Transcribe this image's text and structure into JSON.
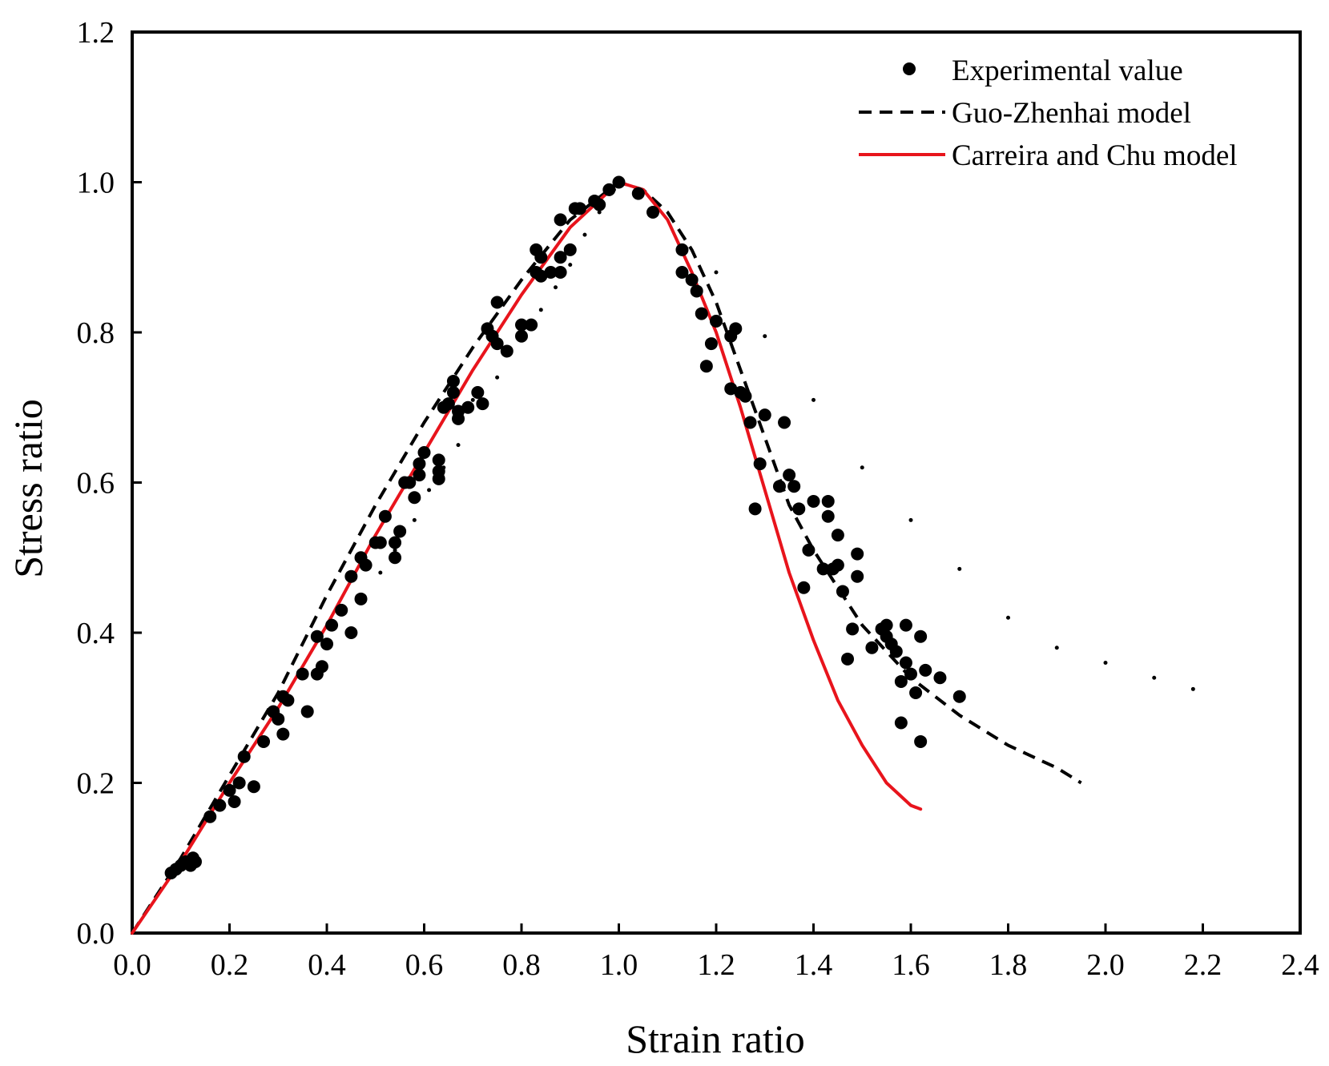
{
  "chart_data": {
    "type": "scatter",
    "title": "",
    "xlabel": "Strain ratio",
    "ylabel": "Stress ratio",
    "xlim": [
      0,
      2.4
    ],
    "ylim": [
      0,
      1.2
    ],
    "xticks": [
      "0.0",
      "0.2",
      "0.4",
      "0.6",
      "0.8",
      "1.0",
      "1.2",
      "1.4",
      "1.6",
      "1.8",
      "2.0",
      "2.2",
      "2.4"
    ],
    "yticks": [
      "0.0",
      "0.2",
      "0.4",
      "0.6",
      "0.8",
      "1.0",
      "1.2"
    ],
    "legend_position": "top-right",
    "series": [
      {
        "name": "Experimental value",
        "kind": "scatter",
        "color": "#000000",
        "points": [
          [
            0.08,
            0.08
          ],
          [
            0.09,
            0.085
          ],
          [
            0.1,
            0.09
          ],
          [
            0.11,
            0.095
          ],
          [
            0.12,
            0.09
          ],
          [
            0.125,
            0.1
          ],
          [
            0.13,
            0.095
          ],
          [
            0.16,
            0.155
          ],
          [
            0.18,
            0.17
          ],
          [
            0.2,
            0.19
          ],
          [
            0.21,
            0.175
          ],
          [
            0.22,
            0.2
          ],
          [
            0.23,
            0.235
          ],
          [
            0.25,
            0.195
          ],
          [
            0.27,
            0.255
          ],
          [
            0.29,
            0.295
          ],
          [
            0.3,
            0.285
          ],
          [
            0.31,
            0.315
          ],
          [
            0.31,
            0.265
          ],
          [
            0.32,
            0.31
          ],
          [
            0.35,
            0.345
          ],
          [
            0.36,
            0.295
          ],
          [
            0.38,
            0.395
          ],
          [
            0.38,
            0.345
          ],
          [
            0.39,
            0.355
          ],
          [
            0.4,
            0.385
          ],
          [
            0.41,
            0.41
          ],
          [
            0.43,
            0.43
          ],
          [
            0.45,
            0.475
          ],
          [
            0.45,
            0.4
          ],
          [
            0.47,
            0.5
          ],
          [
            0.47,
            0.445
          ],
          [
            0.48,
            0.49
          ],
          [
            0.5,
            0.52
          ],
          [
            0.51,
            0.52
          ],
          [
            0.52,
            0.555
          ],
          [
            0.54,
            0.52
          ],
          [
            0.54,
            0.5
          ],
          [
            0.55,
            0.535
          ],
          [
            0.56,
            0.6
          ],
          [
            0.57,
            0.6
          ],
          [
            0.58,
            0.58
          ],
          [
            0.59,
            0.625
          ],
          [
            0.59,
            0.61
          ],
          [
            0.6,
            0.64
          ],
          [
            0.63,
            0.63
          ],
          [
            0.63,
            0.615
          ],
          [
            0.63,
            0.605
          ],
          [
            0.64,
            0.7
          ],
          [
            0.65,
            0.705
          ],
          [
            0.66,
            0.735
          ],
          [
            0.66,
            0.72
          ],
          [
            0.67,
            0.695
          ],
          [
            0.67,
            0.685
          ],
          [
            0.69,
            0.7
          ],
          [
            0.71,
            0.72
          ],
          [
            0.72,
            0.705
          ],
          [
            0.73,
            0.805
          ],
          [
            0.74,
            0.795
          ],
          [
            0.75,
            0.785
          ],
          [
            0.75,
            0.84
          ],
          [
            0.77,
            0.775
          ],
          [
            0.8,
            0.81
          ],
          [
            0.8,
            0.795
          ],
          [
            0.82,
            0.81
          ],
          [
            0.83,
            0.88
          ],
          [
            0.83,
            0.91
          ],
          [
            0.84,
            0.875
          ],
          [
            0.84,
            0.9
          ],
          [
            0.86,
            0.88
          ],
          [
            0.88,
            0.9
          ],
          [
            0.88,
            0.88
          ],
          [
            0.88,
            0.95
          ],
          [
            0.9,
            0.91
          ],
          [
            0.91,
            0.965
          ],
          [
            0.92,
            0.965
          ],
          [
            0.95,
            0.975
          ],
          [
            0.96,
            0.97
          ],
          [
            0.98,
            0.99
          ],
          [
            1.0,
            1.0
          ],
          [
            1.04,
            0.985
          ],
          [
            1.07,
            0.96
          ],
          [
            1.13,
            0.91
          ],
          [
            1.13,
            0.88
          ],
          [
            1.15,
            0.87
          ],
          [
            1.16,
            0.855
          ],
          [
            1.17,
            0.825
          ],
          [
            1.18,
            0.755
          ],
          [
            1.19,
            0.785
          ],
          [
            1.2,
            0.815
          ],
          [
            1.23,
            0.725
          ],
          [
            1.23,
            0.795
          ],
          [
            1.24,
            0.805
          ],
          [
            1.25,
            0.72
          ],
          [
            1.26,
            0.715
          ],
          [
            1.27,
            0.68
          ],
          [
            1.28,
            0.565
          ],
          [
            1.29,
            0.625
          ],
          [
            1.3,
            0.69
          ],
          [
            1.33,
            0.595
          ],
          [
            1.34,
            0.68
          ],
          [
            1.35,
            0.61
          ],
          [
            1.36,
            0.595
          ],
          [
            1.37,
            0.565
          ],
          [
            1.38,
            0.46
          ],
          [
            1.39,
            0.51
          ],
          [
            1.4,
            0.575
          ],
          [
            1.42,
            0.485
          ],
          [
            1.43,
            0.575
          ],
          [
            1.43,
            0.555
          ],
          [
            1.44,
            0.485
          ],
          [
            1.45,
            0.53
          ],
          [
            1.45,
            0.49
          ],
          [
            1.46,
            0.455
          ],
          [
            1.47,
            0.365
          ],
          [
            1.48,
            0.405
          ],
          [
            1.49,
            0.505
          ],
          [
            1.49,
            0.475
          ],
          [
            1.52,
            0.38
          ],
          [
            1.54,
            0.405
          ],
          [
            1.55,
            0.41
          ],
          [
            1.55,
            0.395
          ],
          [
            1.56,
            0.385
          ],
          [
            1.57,
            0.375
          ],
          [
            1.58,
            0.28
          ],
          [
            1.58,
            0.335
          ],
          [
            1.59,
            0.36
          ],
          [
            1.59,
            0.41
          ],
          [
            1.6,
            0.345
          ],
          [
            1.61,
            0.32
          ],
          [
            1.62,
            0.395
          ],
          [
            1.62,
            0.255
          ],
          [
            1.63,
            0.35
          ],
          [
            1.66,
            0.34
          ],
          [
            1.7,
            0.315
          ]
        ]
      },
      {
        "name": "Guo-Zhenhai model",
        "kind": "dashed-line",
        "color": "#000000",
        "x": [
          0,
          0.1,
          0.2,
          0.3,
          0.4,
          0.5,
          0.6,
          0.7,
          0.8,
          0.9,
          1.0,
          1.05,
          1.1,
          1.15,
          1.2,
          1.25,
          1.3,
          1.35,
          1.4,
          1.5,
          1.6,
          1.7,
          1.8,
          1.9,
          1.95
        ],
        "y": [
          0,
          0.1,
          0.21,
          0.32,
          0.45,
          0.57,
          0.68,
          0.78,
          0.87,
          0.95,
          1.0,
          0.99,
          0.96,
          0.91,
          0.84,
          0.75,
          0.66,
          0.57,
          0.51,
          0.41,
          0.34,
          0.29,
          0.25,
          0.22,
          0.2
        ]
      },
      {
        "name": "Carreira and Chu model",
        "kind": "solid-line",
        "color": "#e8141c",
        "x": [
          0,
          0.1,
          0.2,
          0.3,
          0.4,
          0.5,
          0.6,
          0.7,
          0.8,
          0.9,
          1.0,
          1.05,
          1.1,
          1.15,
          1.2,
          1.25,
          1.3,
          1.35,
          1.4,
          1.45,
          1.5,
          1.55,
          1.6,
          1.62
        ],
        "y": [
          0,
          0.095,
          0.2,
          0.3,
          0.41,
          0.53,
          0.64,
          0.75,
          0.85,
          0.94,
          1.0,
          0.99,
          0.95,
          0.88,
          0.8,
          0.7,
          0.59,
          0.48,
          0.39,
          0.31,
          0.25,
          0.2,
          0.17,
          0.165
        ]
      }
    ],
    "sparse_dotted_trail": {
      "color": "#000000",
      "points": [
        [
          0.51,
          0.48
        ],
        [
          0.54,
          0.51
        ],
        [
          0.58,
          0.55
        ],
        [
          0.61,
          0.59
        ],
        [
          0.64,
          0.62
        ],
        [
          0.67,
          0.65
        ],
        [
          0.7,
          0.71
        ],
        [
          0.75,
          0.74
        ],
        [
          0.8,
          0.79
        ],
        [
          0.84,
          0.83
        ],
        [
          0.87,
          0.86
        ],
        [
          0.9,
          0.89
        ],
        [
          0.93,
          0.93
        ],
        [
          0.96,
          0.96
        ],
        [
          0.99,
          0.99
        ],
        [
          1.08,
          0.97
        ],
        [
          1.2,
          0.88
        ],
        [
          1.3,
          0.795
        ],
        [
          1.4,
          0.71
        ],
        [
          1.5,
          0.62
        ],
        [
          1.6,
          0.55
        ],
        [
          1.7,
          0.485
        ],
        [
          1.8,
          0.42
        ],
        [
          1.9,
          0.38
        ],
        [
          2.0,
          0.36
        ],
        [
          2.1,
          0.34
        ],
        [
          2.18,
          0.325
        ]
      ]
    }
  }
}
